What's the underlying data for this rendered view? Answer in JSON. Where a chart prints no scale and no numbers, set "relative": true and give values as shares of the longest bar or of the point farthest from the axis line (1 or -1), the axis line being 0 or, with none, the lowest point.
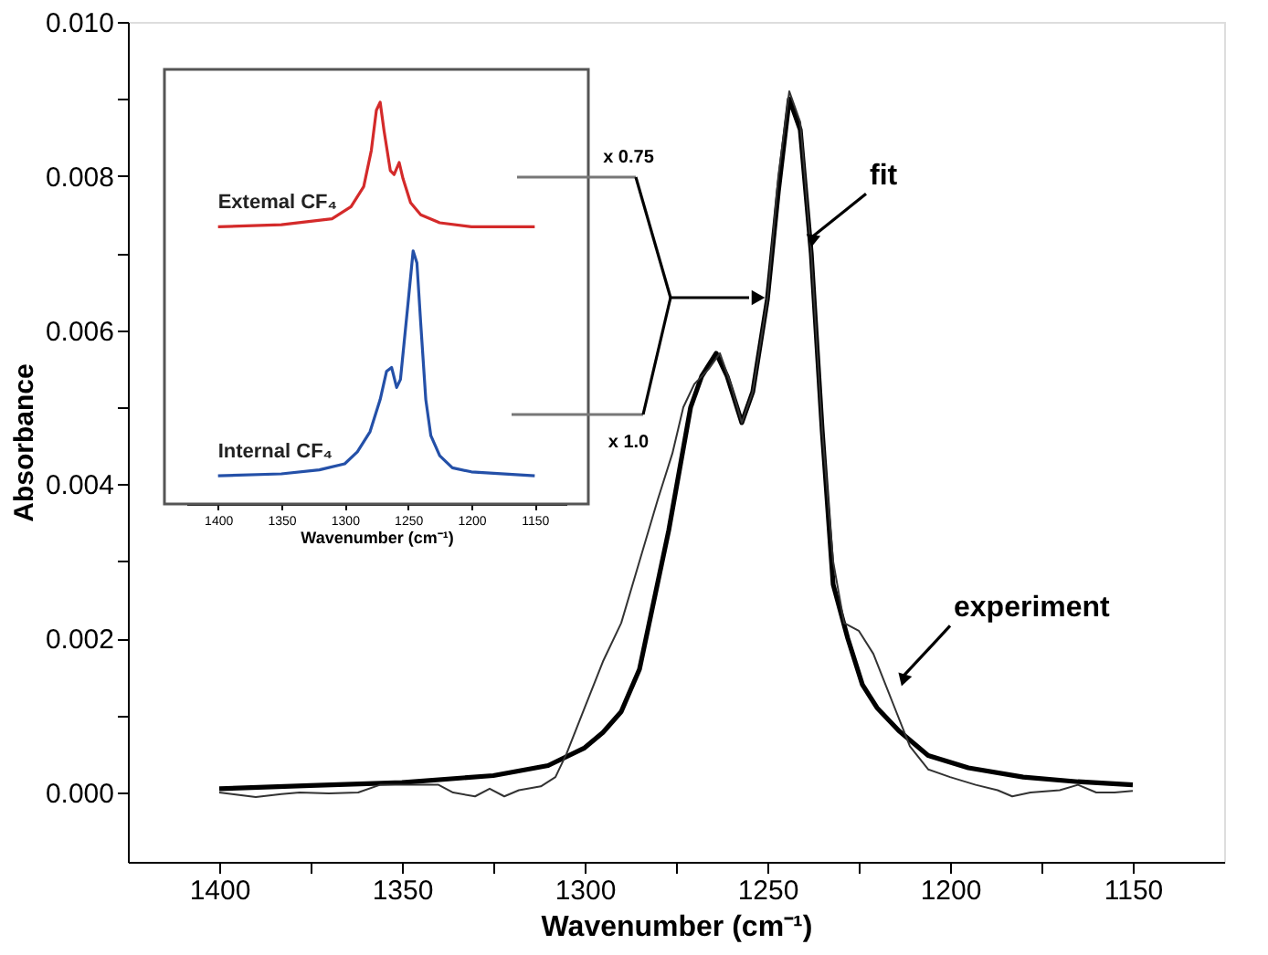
{
  "chart_data": [
    {
      "type": "line",
      "xlabel": "Wavenumber (cm⁻¹)",
      "ylabel": "Absorbance",
      "xlim": [
        1425,
        1125
      ],
      "ylim": [
        -0.0009,
        0.01
      ],
      "xticks": [
        1400,
        {
          "value": 1375,
          "label": null
        },
        1350,
        {
          "value": 1325,
          "label": null
        },
        1300,
        {
          "value": 1275,
          "label": null
        },
        1250,
        {
          "value": 1225,
          "label": null
        },
        1200,
        {
          "value": 1175,
          "label": null
        },
        1150
      ],
      "yticks": [
        {
          "value": 0,
          "label": "0.000"
        },
        {
          "value": 0.001,
          "label": null
        },
        {
          "value": 0.002,
          "label": "0.002"
        },
        {
          "value": 0.003,
          "label": null
        },
        {
          "value": 0.004,
          "label": "0.004"
        },
        {
          "value": 0.005,
          "label": null
        },
        {
          "value": 0.006,
          "label": "0.006"
        },
        {
          "value": 0.007,
          "label": null
        },
        {
          "value": 0.008,
          "label": "0.008"
        },
        {
          "value": 0.009,
          "label": null
        },
        {
          "value": 0.01,
          "label": "0.010"
        }
      ],
      "series": [
        {
          "color": "#000000",
          "x": [
            1400,
            1375,
            1350,
            1325,
            1310,
            1300,
            1295,
            1290,
            1285,
            1281,
            1277,
            1274,
            1271,
            1268,
            1264,
            1261,
            1257,
            1254,
            1250,
            1247,
            1244,
            1241,
            1238,
            1235,
            1232,
            1228,
            1224,
            1220,
            1214,
            1206,
            1195,
            1180,
            1165,
            1150
          ],
          "values": [
            5e-05,
            9e-05,
            0.00013,
            0.00022,
            0.00035,
            0.00058,
            0.00078,
            0.00105,
            0.0016,
            0.0025,
            0.0034,
            0.0042,
            0.005,
            0.0054,
            0.0057,
            0.0054,
            0.0048,
            0.0052,
            0.0064,
            0.0078,
            0.009,
            0.0086,
            0.007,
            0.0047,
            0.0027,
            0.002,
            0.0014,
            0.0011,
            0.0008,
            0.00048,
            0.00032,
            0.0002,
            0.00014,
            0.0001
          ]
        },
        {
          "color": "#333333",
          "x": [
            1400,
            1395,
            1390,
            1383,
            1378,
            1370,
            1362,
            1356,
            1348,
            1340,
            1336,
            1330,
            1326,
            1322,
            1318,
            1312,
            1308,
            1305,
            1300,
            1295,
            1290,
            1285,
            1280,
            1276,
            1273,
            1270,
            1266,
            1263,
            1260,
            1257,
            1254,
            1250,
            1247,
            1244,
            1241,
            1238,
            1235,
            1232,
            1229,
            1225,
            1221,
            1216,
            1211,
            1206,
            1200,
            1193,
            1187,
            1183,
            1178,
            1170,
            1165,
            1160,
            1155,
            1150
          ],
          "values": [
            0.0,
            -3e-05,
            -6e-05,
            -2e-05,
            0.0,
            -1e-05,
            0.0,
            0.0001,
            0.0001,
            0.0001,
            0.0,
            -5e-05,
            5e-05,
            -5e-05,
            3e-05,
            8e-05,
            0.0002,
            0.0005,
            0.0011,
            0.0017,
            0.0022,
            0.003,
            0.0038,
            0.0044,
            0.005,
            0.0053,
            0.0055,
            0.0057,
            0.0053,
            0.0048,
            0.0052,
            0.0064,
            0.008,
            0.0091,
            0.0087,
            0.007,
            0.0047,
            0.003,
            0.0022,
            0.0021,
            0.0018,
            0.0012,
            0.0006,
            0.0003,
            0.0002,
            0.0001,
            3e-05,
            -5e-05,
            0.0,
            3e-05,
            0.0001,
            0.0,
            0.0,
            2e-05
          ]
        }
      ],
      "annotations": [
        {
          "text": "fit",
          "x": 1238,
          "y": 0.0072
        },
        {
          "text": "experiment",
          "x": 1213,
          "y": 0.0015
        },
        "x 0.75",
        "x 1.0"
      ],
      "grid": false,
      "marker": "none",
      "line_style": "solid"
    },
    {
      "type": "line",
      "xlabel": "Wavenumber (cm⁻¹)",
      "relative": true,
      "tick_labels": "x",
      "xlim": [
        1425,
        1125
      ],
      "xticks": [
        1400,
        1350,
        1300,
        1250,
        1200,
        1150
      ],
      "series": [
        {
          "name": "Extemal CF₄",
          "color": "#d42a2a",
          "x": [
            1400,
            1350,
            1310,
            1295,
            1285,
            1279,
            1275,
            1272,
            1269,
            1264,
            1261,
            1257,
            1254,
            1248,
            1240,
            1225,
            1200,
            1150
          ],
          "values": [
            0.69,
            0.695,
            0.71,
            0.74,
            0.79,
            0.88,
            0.98,
            1.0,
            0.93,
            0.83,
            0.82,
            0.85,
            0.81,
            0.75,
            0.72,
            0.7,
            0.69,
            0.69
          ]
        },
        {
          "name": "Internal CF₄",
          "color": "#2450a8",
          "x": [
            1400,
            1350,
            1320,
            1300,
            1290,
            1280,
            1272,
            1267,
            1263,
            1259,
            1256,
            1250,
            1246,
            1243,
            1240,
            1236,
            1232,
            1225,
            1215,
            1200,
            1150
          ],
          "values": [
            0.07,
            0.075,
            0.085,
            0.1,
            0.13,
            0.18,
            0.26,
            0.33,
            0.34,
            0.29,
            0.31,
            0.5,
            0.63,
            0.6,
            0.45,
            0.26,
            0.17,
            0.12,
            0.09,
            0.08,
            0.07
          ]
        }
      ],
      "grid": false,
      "marker": "none",
      "line_style": "solid"
    }
  ]
}
